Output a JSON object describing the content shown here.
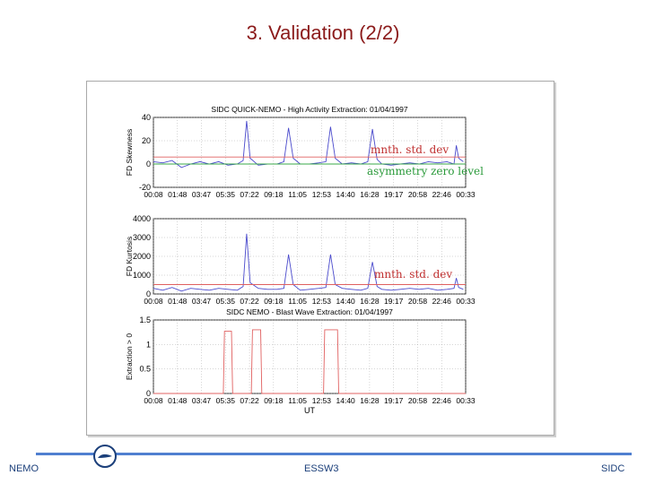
{
  "slide": {
    "title": "3. Validation (2/2)",
    "footer_left": "NEMO",
    "footer_center": "ESSW3",
    "footer_right": "SIDC"
  },
  "colors": {
    "title": "#8B1A1A",
    "series_blue": "#4a4acc",
    "threshold_red": "#e06060",
    "zero_green": "#3aa84a",
    "extraction_red": "#e06060",
    "annotation_red": "#c03030",
    "annotation_green": "#2a9a3a"
  },
  "chart_data": [
    {
      "type": "line",
      "title": "SIDC  QUICK-NEMO - High Activity Extraction: 01/04/1997",
      "ylabel": "FD Skewness",
      "xlabel": "",
      "ylim": [
        -20,
        40
      ],
      "yticks": [
        -20,
        0,
        20,
        40
      ],
      "categories": [
        "00:08",
        "01:48",
        "03:47",
        "05:35",
        "07:22",
        "09:18",
        "11:05",
        "12:53",
        "14:40",
        "16:28",
        "19:17",
        "20:58",
        "22:46",
        "00:33"
      ],
      "xlim": [
        0,
        13.4
      ],
      "series": [
        {
          "role": "skewness",
          "x": [
            0,
            0.4,
            0.8,
            1.2,
            1.6,
            2.0,
            2.4,
            2.8,
            3.2,
            3.6,
            3.85,
            4.0,
            4.15,
            4.5,
            4.9,
            5.3,
            5.6,
            5.8,
            6.0,
            6.3,
            6.7,
            7.1,
            7.4,
            7.6,
            7.8,
            8.1,
            8.5,
            8.9,
            9.2,
            9.4,
            9.6,
            9.8,
            10.2,
            10.6,
            11.0,
            11.4,
            11.8,
            12.2,
            12.6,
            12.9,
            13.0,
            13.1,
            13.3
          ],
          "y": [
            2,
            1,
            3,
            -3,
            0,
            2,
            0,
            2,
            -1,
            0,
            3,
            37,
            5,
            -1,
            0,
            0,
            2,
            31,
            5,
            0,
            0,
            1,
            2,
            32,
            5,
            0,
            1,
            0,
            2,
            30,
            4,
            0,
            -1,
            0,
            1,
            0,
            2,
            1,
            2,
            0,
            16,
            5,
            2
          ]
        },
        {
          "role": "threshold",
          "x": [
            0,
            13.4
          ],
          "y": [
            6,
            6
          ]
        },
        {
          "role": "zero-level",
          "x": [
            0,
            13.4
          ],
          "y": [
            0,
            0
          ]
        }
      ],
      "annotations": [
        "mnth. std. dev",
        "asymmetry zero level"
      ]
    },
    {
      "type": "line",
      "title": "",
      "ylabel": "FD Kurtosis",
      "xlabel": "",
      "ylim": [
        0,
        4000
      ],
      "yticks": [
        0,
        1000,
        2000,
        3000,
        4000
      ],
      "categories": [
        "00:08",
        "01:48",
        "03:47",
        "05:35",
        "07:22",
        "09:18",
        "11:05",
        "12:53",
        "14:40",
        "16:28",
        "19:17",
        "20:58",
        "22:46",
        "00:33"
      ],
      "xlim": [
        0,
        13.4
      ],
      "series": [
        {
          "role": "kurtosis",
          "x": [
            0,
            0.4,
            0.8,
            1.2,
            1.6,
            2.0,
            2.4,
            2.8,
            3.2,
            3.6,
            3.85,
            4.0,
            4.15,
            4.5,
            4.9,
            5.3,
            5.6,
            5.8,
            6.0,
            6.3,
            6.7,
            7.1,
            7.4,
            7.6,
            7.8,
            8.1,
            8.5,
            8.9,
            9.2,
            9.4,
            9.6,
            9.8,
            10.2,
            10.6,
            11.0,
            11.4,
            11.8,
            12.2,
            12.6,
            12.9,
            13.0,
            13.1,
            13.3
          ],
          "y": [
            300,
            200,
            350,
            150,
            300,
            250,
            200,
            300,
            250,
            200,
            400,
            3200,
            600,
            300,
            250,
            250,
            300,
            2100,
            500,
            200,
            250,
            300,
            350,
            2100,
            500,
            300,
            250,
            200,
            300,
            1700,
            400,
            250,
            200,
            250,
            300,
            250,
            300,
            200,
            250,
            300,
            850,
            350,
            250
          ]
        },
        {
          "role": "threshold",
          "x": [
            0,
            13.4
          ],
          "y": [
            500,
            500
          ]
        }
      ],
      "annotations": [
        "mnth. std. dev"
      ]
    },
    {
      "type": "line",
      "title": "SIDC  NEMO - Blast Wave Extraction: 01/04/1997",
      "ylabel": "Extraction > 0",
      "xlabel": "UT",
      "ylim": [
        0,
        1.5
      ],
      "yticks": [
        0,
        0.5,
        1,
        1.5
      ],
      "categories": [
        "00:08",
        "01:48",
        "03:47",
        "05:35",
        "07:22",
        "09:18",
        "11:05",
        "12:53",
        "14:40",
        "16:28",
        "19:17",
        "20:58",
        "22:46",
        "00:33"
      ],
      "xlim": [
        0,
        13.4
      ],
      "series": [
        {
          "role": "extraction",
          "x": [
            0,
            3.0,
            3.05,
            3.35,
            3.4,
            4.2,
            4.25,
            4.6,
            4.65,
            7.3,
            7.35,
            7.9,
            7.95,
            13.4
          ],
          "y": [
            0,
            0,
            1.27,
            1.27,
            0,
            0,
            1.3,
            1.3,
            0,
            0,
            1.3,
            1.3,
            0,
            0
          ]
        }
      ],
      "annotations": []
    }
  ]
}
